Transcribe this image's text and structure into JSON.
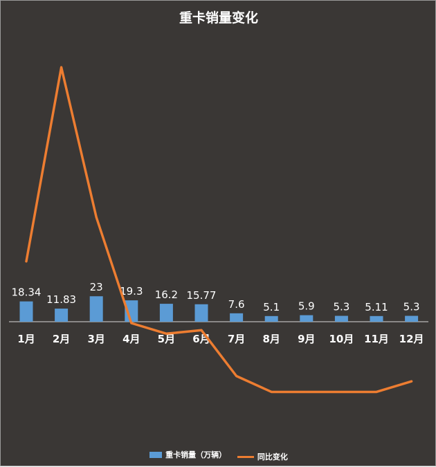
{
  "chart_data": {
    "type": "bar+line",
    "title": "重卡销量变化",
    "categories": [
      "1月",
      "2月",
      "3月",
      "4月",
      "5月",
      "6月",
      "7月",
      "8月",
      "9月",
      "10月",
      "11月",
      "12月"
    ],
    "series": [
      {
        "name": "重卡销量（万辆）",
        "type": "bar",
        "values": [
          18.34,
          11.83,
          23,
          19.3,
          16.2,
          15.77,
          7.6,
          5.1,
          5.9,
          5.3,
          5.11,
          5.3
        ],
        "labels": [
          "18.34",
          "11.83",
          "23",
          "19.3",
          "16.2",
          "15.77",
          "7.6",
          "5.1",
          "5.9",
          "5.3",
          "5.11",
          "5.3"
        ]
      },
      {
        "name": "同比变化",
        "type": "line",
        "values": [
          0.35,
          1.45,
          0.6,
          0.0,
          -0.06,
          -0.04,
          -0.3,
          -0.39,
          -0.39,
          -0.39,
          -0.39,
          -0.33
        ]
      }
    ],
    "legend_position": "bottom",
    "grid": false,
    "colors": {
      "bar": "#5b9bd5",
      "line": "#ed7d31",
      "background": "#3a3735",
      "text": "#ffffff"
    }
  }
}
